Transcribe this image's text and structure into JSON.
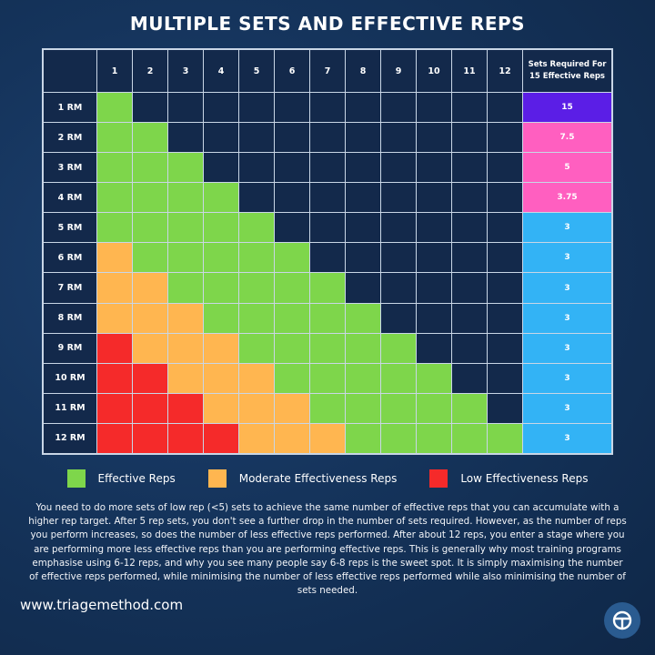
{
  "chart_data": {
    "type": "table",
    "title": "MULTIPLE SETS AND EFFECTIVE REPS",
    "columns": [
      "1",
      "2",
      "3",
      "4",
      "5",
      "6",
      "7",
      "8",
      "9",
      "10",
      "11",
      "12"
    ],
    "last_column_header": "Sets Required For 15 Effective Reps",
    "rows": [
      "1 RM",
      "2 RM",
      "3 RM",
      "4 RM",
      "5 RM",
      "6 RM",
      "7 RM",
      "8 RM",
      "9 RM",
      "10 RM",
      "11 RM",
      "12 RM"
    ],
    "sets_required": [
      "15",
      "7.5",
      "5",
      "3.75",
      "3",
      "3",
      "3",
      "3",
      "3",
      "3",
      "3",
      "3"
    ],
    "sets_colors": [
      "#5b1ee6",
      "#ff5fc0",
      "#ff5fc0",
      "#ff5fc0",
      "#33b3f5",
      "#33b3f5",
      "#33b3f5",
      "#33b3f5",
      "#33b3f5",
      "#33b3f5",
      "#33b3f5",
      "#33b3f5"
    ],
    "cells": [
      [
        "E"
      ],
      [
        "E",
        "E"
      ],
      [
        "E",
        "E",
        "E"
      ],
      [
        "E",
        "E",
        "E",
        "E"
      ],
      [
        "E",
        "E",
        "E",
        "E",
        "E"
      ],
      [
        "M",
        "E",
        "E",
        "E",
        "E",
        "E"
      ],
      [
        "M",
        "M",
        "E",
        "E",
        "E",
        "E",
        "E"
      ],
      [
        "M",
        "M",
        "M",
        "E",
        "E",
        "E",
        "E",
        "E"
      ],
      [
        "L",
        "M",
        "M",
        "M",
        "E",
        "E",
        "E",
        "E",
        "E"
      ],
      [
        "L",
        "L",
        "M",
        "M",
        "M",
        "E",
        "E",
        "E",
        "E",
        "E"
      ],
      [
        "L",
        "L",
        "L",
        "M",
        "M",
        "M",
        "E",
        "E",
        "E",
        "E",
        "E"
      ],
      [
        "L",
        "L",
        "L",
        "L",
        "M",
        "M",
        "M",
        "E",
        "E",
        "E",
        "E",
        "E"
      ]
    ],
    "legend": [
      {
        "key": "E",
        "label": "Effective Reps",
        "color": "#7ed64b"
      },
      {
        "key": "M",
        "label": "Moderate Effectiveness Reps",
        "color": "#ffb650"
      },
      {
        "key": "L",
        "label": "Low Effectiveness Reps",
        "color": "#f52a2a"
      }
    ],
    "empty_color": "#13294b"
  },
  "description": "You need to do more sets of low rep (<5) sets to achieve the same number of effective reps that you can accumulate with a higher rep target. After 5 rep sets, you don't see a further drop in the number of sets required. However, as the number of reps you perform increases, so does the number of less effective reps performed. After about 12 reps, you enter a stage where you are performing more less effective reps than you are performing effective reps. This is generally why most training programs emphasise using 6-12 reps, and why you see many people say 6-8 reps is the sweet spot. It is simply maximising the number of effective reps performed, while minimising the number of less effective reps performed while also minimising the number of sets needed.",
  "footer": {
    "url": "www.triagemethod.com",
    "logo_icon": "triage-method-logo"
  }
}
